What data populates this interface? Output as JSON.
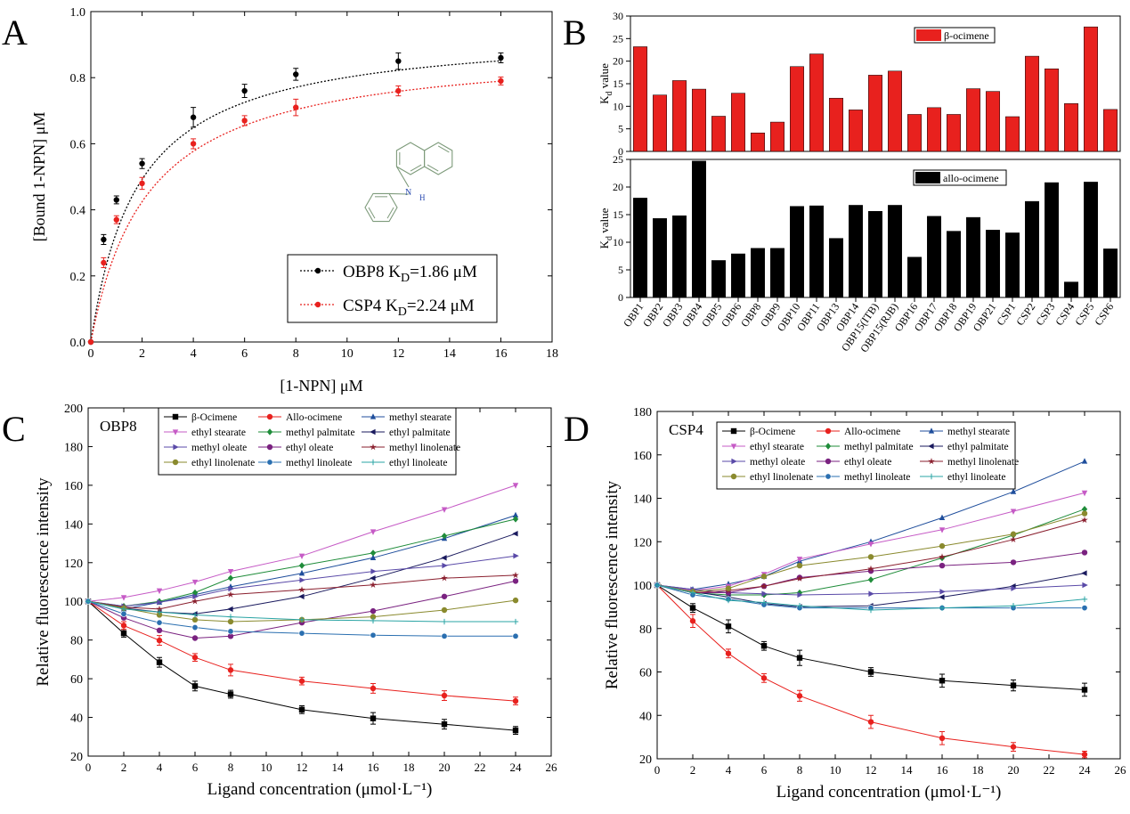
{
  "panel_letters": [
    "A",
    "B",
    "C",
    "D"
  ],
  "chart_data": [
    {
      "panel": "A",
      "type": "line",
      "xlabel": "[1-NPN] μM",
      "ylabel": "[Bound 1-NPN] μM",
      "xlim": [
        0,
        18
      ],
      "ylim": [
        0.0,
        1.0
      ],
      "xticks": [
        0,
        2,
        4,
        6,
        8,
        10,
        12,
        14,
        16,
        18
      ],
      "yticks": [
        0.0,
        0.2,
        0.4,
        0.6,
        0.8,
        1.0
      ],
      "ytick_labels": [
        "0.0",
        "0.2",
        "0.4",
        "0.6",
        "0.8",
        "1.0"
      ],
      "legend_position": "bottom-right",
      "series": [
        {
          "name": "OBP8",
          "kd_label": "K_D=1.86 μM",
          "x": [
            0,
            0.5,
            1,
            2,
            4,
            6,
            8,
            12,
            16
          ],
          "y": [
            0.0,
            0.31,
            0.43,
            0.54,
            0.68,
            0.76,
            0.81,
            0.85,
            0.86
          ],
          "err": [
            0,
            0.015,
            0.012,
            0.015,
            0.03,
            0.02,
            0.018,
            0.025,
            0.015
          ],
          "fit_bmax": 0.95,
          "fit_kd": 1.86,
          "color": "#000000"
        },
        {
          "name": "CSP4",
          "kd_label": "K_D=2.24 μM",
          "x": [
            0,
            0.5,
            1,
            2,
            4,
            6,
            8,
            12,
            16
          ],
          "y": [
            0.0,
            0.24,
            0.37,
            0.48,
            0.6,
            0.67,
            0.71,
            0.76,
            0.79
          ],
          "err": [
            0,
            0.015,
            0.012,
            0.018,
            0.015,
            0.015,
            0.025,
            0.015,
            0.012
          ],
          "fit_bmax": 0.9,
          "fit_kd": 2.24,
          "color": "#e8211e"
        }
      ],
      "structure_labels": {
        "n": "N",
        "h": "H"
      }
    },
    {
      "panel": "B",
      "type": "bar",
      "categories": [
        "OBP1",
        "OBP2",
        "OBP3",
        "OBP4",
        "OBP5",
        "OBP6",
        "OBP8",
        "OBP9",
        "OBP10",
        "OBP11",
        "OBP13",
        "OBP14",
        "OBP15(ITB)",
        "OBP15(RJB)",
        "OBP16",
        "OBP17",
        "OBP18",
        "OBP19",
        "OBP21",
        "CSP1",
        "CSP2",
        "CSP3",
        "CSP4",
        "CSP5",
        "CSP6"
      ],
      "subplots": [
        {
          "name": "β-ocimene",
          "ylabel_main": "K",
          "ylabel_sub": "d",
          "ylabel_rest": " value",
          "ylim": [
            0,
            30
          ],
          "yticks": [
            0,
            5,
            10,
            15,
            20,
            25,
            30
          ],
          "color": "#e8211e",
          "values": [
            23.2,
            12.5,
            15.7,
            13.8,
            7.8,
            12.9,
            4.1,
            6.5,
            18.8,
            21.6,
            11.8,
            9.2,
            16.9,
            17.8,
            8.2,
            9.7,
            8.2,
            13.9,
            13.3,
            7.7,
            21.1,
            18.3,
            10.6,
            27.6,
            9.3
          ]
        },
        {
          "name": "allo-ocimene",
          "ylabel_main": "K",
          "ylabel_sub": "d",
          "ylabel_rest": " value",
          "ylim": [
            0,
            25
          ],
          "yticks": [
            0,
            5,
            10,
            15,
            20,
            25
          ],
          "color": "#000000",
          "values": [
            18.0,
            14.3,
            14.8,
            24.7,
            6.7,
            7.9,
            8.9,
            8.9,
            16.5,
            16.6,
            10.7,
            16.7,
            15.6,
            16.7,
            7.3,
            14.7,
            12.0,
            14.5,
            12.2,
            11.7,
            17.4,
            20.8,
            2.8,
            20.9,
            8.8
          ]
        }
      ]
    },
    {
      "panel": "C",
      "type": "line",
      "title": "OBP8",
      "xlabel": "Ligand concentration (μmol·L⁻¹)",
      "ylabel": "Relative fluorescence intensity",
      "xlim": [
        0,
        26
      ],
      "ylim": [
        20,
        200
      ],
      "xticks": [
        0,
        2,
        4,
        6,
        8,
        10,
        12,
        14,
        16,
        18,
        20,
        22,
        24,
        26
      ],
      "yticks": [
        20,
        40,
        60,
        80,
        100,
        120,
        140,
        160,
        180,
        200
      ],
      "x": [
        0,
        2,
        4,
        6,
        8,
        12,
        16,
        20,
        24
      ],
      "legend_position": "top",
      "series": [
        {
          "name": "β-Ocimene",
          "color": "#000000",
          "marker": "square",
          "values": [
            100,
            83.5,
            68.5,
            56.2,
            52.0,
            44.0,
            39.5,
            36.5,
            33.3
          ],
          "err": [
            0,
            2,
            2.5,
            2.5,
            2,
            2,
            3,
            2.5,
            2
          ]
        },
        {
          "name": "Allo-ocimene",
          "color": "#e8211e",
          "marker": "circle",
          "values": [
            100,
            87.5,
            79.8,
            71.0,
            64.5,
            58.8,
            55.0,
            51.3,
            48.5
          ],
          "err": [
            0,
            2,
            2.5,
            2,
            3,
            2,
            2.5,
            2.5,
            2
          ]
        },
        {
          "name": "methyl stearate",
          "color": "#1f4e9c",
          "marker": "triangle-up",
          "values": [
            100,
            96.0,
            99.5,
            103.5,
            107.5,
            114.5,
            122.5,
            132.5,
            144.5
          ]
        },
        {
          "name": "ethyl stearate",
          "color": "#c65bc6",
          "marker": "triangle-down",
          "values": [
            100,
            102.0,
            105.5,
            110.0,
            115.5,
            123.5,
            136.0,
            147.5,
            160.0
          ]
        },
        {
          "name": "methyl palmitate",
          "color": "#1f8c3a",
          "marker": "diamond",
          "values": [
            100,
            97.5,
            100.0,
            104.5,
            112.0,
            118.5,
            125.0,
            133.8,
            142.5
          ]
        },
        {
          "name": "ethyl palmitate",
          "color": "#1a1a5e",
          "marker": "triangle-left",
          "values": [
            100,
            96.5,
            94.5,
            93.5,
            96.0,
            102.5,
            112.0,
            122.5,
            135.0
          ]
        },
        {
          "name": "methyl oleate",
          "color": "#5a4aa8",
          "marker": "triangle-right",
          "values": [
            100,
            97.5,
            99.5,
            102.5,
            106.5,
            111.0,
            115.5,
            118.5,
            123.5
          ]
        },
        {
          "name": "ethyl oleate",
          "color": "#7a2280",
          "marker": "circle",
          "values": [
            100,
            91.5,
            85.0,
            81.0,
            82.0,
            89.0,
            95.0,
            102.5,
            110.5
          ]
        },
        {
          "name": "methyl linolenate",
          "color": "#8a1f2e",
          "marker": "star",
          "values": [
            100,
            97.0,
            96.0,
            100.0,
            103.5,
            106.0,
            108.5,
            112.0,
            113.5
          ]
        },
        {
          "name": "ethyl linolenate",
          "color": "#8a8a2e",
          "marker": "circle",
          "values": [
            100,
            96.5,
            93.0,
            90.5,
            89.5,
            90.5,
            92.0,
            95.5,
            100.5
          ]
        },
        {
          "name": "methyl linoleate",
          "color": "#2a6fb0",
          "marker": "hexagon",
          "values": [
            100,
            93.5,
            89.0,
            86.5,
            84.5,
            83.5,
            82.5,
            82.0,
            82.0
          ]
        },
        {
          "name": "ethyl linoleate",
          "color": "#2aa4a4",
          "marker": "plus",
          "values": [
            100,
            96.0,
            94.5,
            93.0,
            92.0,
            90.5,
            90.0,
            89.5,
            89.5
          ]
        }
      ]
    },
    {
      "panel": "D",
      "type": "line",
      "title": "CSP4",
      "xlabel": "Ligand concentration (μmol·L⁻¹)",
      "ylabel": "Relative fluorescence intensity",
      "xlim": [
        0,
        26
      ],
      "ylim": [
        20,
        180
      ],
      "xticks": [
        0,
        2,
        4,
        6,
        8,
        10,
        12,
        14,
        16,
        18,
        20,
        22,
        24,
        26
      ],
      "yticks": [
        20,
        40,
        60,
        80,
        100,
        120,
        140,
        160,
        180
      ],
      "x": [
        0,
        2,
        4,
        6,
        8,
        12,
        16,
        20,
        24
      ],
      "legend_position": "top",
      "series": [
        {
          "name": "β-Ocimene",
          "color": "#000000",
          "marker": "square",
          "values": [
            100,
            89.5,
            81.0,
            72.0,
            66.5,
            60.0,
            56.0,
            53.8,
            51.8
          ],
          "err": [
            0,
            2,
            3,
            2,
            3.5,
            2,
            3,
            2.5,
            3
          ]
        },
        {
          "name": "Allo-ocimene",
          "color": "#e8211e",
          "marker": "circle",
          "values": [
            100,
            83.5,
            68.5,
            57.2,
            49.0,
            37.0,
            29.5,
            25.5,
            22.0
          ],
          "err": [
            0,
            3,
            2,
            2,
            2.5,
            3,
            3,
            2,
            1.5
          ]
        },
        {
          "name": "methyl stearate",
          "color": "#1f4e9c",
          "marker": "triangle-up",
          "values": [
            100,
            98.0,
            100.5,
            104.0,
            111.0,
            120.0,
            131.0,
            143.0,
            157.0
          ]
        },
        {
          "name": "ethyl stearate",
          "color": "#c65bc6",
          "marker": "triangle-down",
          "values": [
            100,
            97.5,
            99.5,
            105.0,
            112.0,
            119.0,
            125.5,
            134.0,
            142.5
          ]
        },
        {
          "name": "methyl palmitate",
          "color": "#1f8c3a",
          "marker": "diamond",
          "values": [
            100,
            96.5,
            95.5,
            95.5,
            96.5,
            102.5,
            112.5,
            123.0,
            135.0
          ]
        },
        {
          "name": "ethyl palmitate",
          "color": "#1a1a5e",
          "marker": "triangle-left",
          "values": [
            100,
            97.0,
            94.5,
            91.5,
            90.0,
            90.5,
            94.5,
            99.5,
            105.5
          ]
        },
        {
          "name": "methyl oleate",
          "color": "#5a4aa8",
          "marker": "triangle-right",
          "values": [
            100,
            98.0,
            96.5,
            96.0,
            95.5,
            96.0,
            97.0,
            98.5,
            100.0
          ]
        },
        {
          "name": "ethyl oleate",
          "color": "#7a2280",
          "marker": "circle",
          "values": [
            100,
            96.5,
            96.5,
            99.5,
            103.5,
            106.5,
            109.0,
            110.5,
            115.0
          ]
        },
        {
          "name": "methyl linolenate",
          "color": "#8a1f2e",
          "marker": "star",
          "values": [
            100,
            96.5,
            97.5,
            99.5,
            103.0,
            107.5,
            113.0,
            121.0,
            130.0
          ]
        },
        {
          "name": "ethyl linolenate",
          "color": "#8a8a2e",
          "marker": "circle",
          "values": [
            100,
            97.0,
            98.5,
            104.0,
            109.0,
            113.0,
            118.0,
            123.5,
            133.0
          ]
        },
        {
          "name": "methyl linoleate",
          "color": "#2a6fb0",
          "marker": "hexagon",
          "values": [
            100,
            95.5,
            93.5,
            91.0,
            89.5,
            89.5,
            89.5,
            89.5,
            89.5
          ]
        },
        {
          "name": "ethyl linoleate",
          "color": "#2aa4a4",
          "marker": "plus",
          "values": [
            100,
            96.5,
            93.0,
            92.0,
            90.5,
            88.5,
            89.5,
            90.5,
            93.5
          ]
        }
      ]
    }
  ]
}
